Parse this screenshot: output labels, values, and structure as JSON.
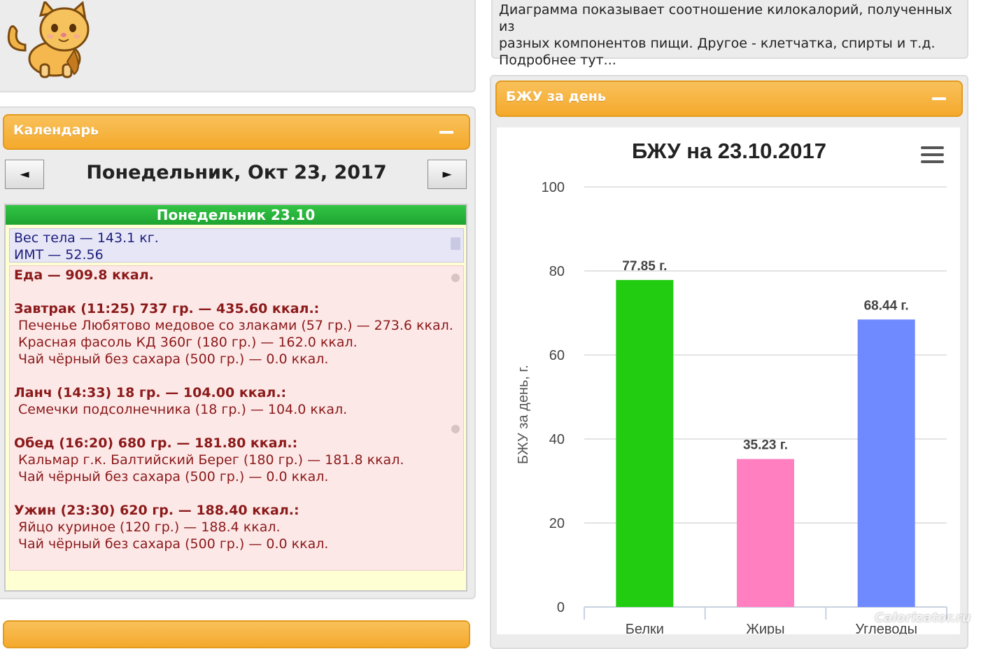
{
  "description": {
    "lines": [
      "Диаграмма показывает соотношение килокалорий, полученных из",
      "разных компонентов пищи. Другое - клетчатка, спирты и т.д.",
      "Подробнее тут..."
    ]
  },
  "calendar": {
    "header": "Календарь",
    "title": "Понедельник, Окт 23, 2017",
    "prev_symbol": "◄",
    "next_symbol": "►",
    "day_header": "Понедельник 23.10",
    "weight_line": "Вес тела — 143.1 кг.",
    "bmi_line": "ИМТ — 52.56",
    "food_total": "Еда — 909.8 ккал.",
    "meals": [
      {
        "title": "Завтрак (11:25) 737 гр. — 435.60 ккал.:",
        "items": [
          "Печенье Любятово медовое со злаками (57 гр.) — 273.6 ккал.",
          "Красная фасоль КД 360г (180 гр.) — 162.0 ккал.",
          "Чай чёрный без сахара (500 гр.) — 0.0 ккал."
        ]
      },
      {
        "title": "Ланч (14:33) 18 гр. — 104.00 ккал.:",
        "items": [
          "Семечки подсолнечника (18 гр.) — 104.0 ккал."
        ]
      },
      {
        "title": "Обед (16:20) 680 гр. — 181.80 ккал.:",
        "items": [
          "Кальмар г.к. Балтийский Берег (180 гр.) — 181.8 ккал.",
          "Чай чёрный без сахара (500 гр.) — 0.0 ккал."
        ]
      },
      {
        "title": "Ужин (23:30) 620 гр. — 188.40 ккал.:",
        "items": [
          "Яйцо куриное (120 гр.) — 188.4 ккал.",
          "Чай чёрный без сахара (500 гр.) — 0.0 ккал."
        ]
      }
    ]
  },
  "bju_panel": {
    "header": "БЖУ за день"
  },
  "watermark": "Calorizator.ru",
  "chart_data": {
    "type": "bar",
    "title": "БЖУ на 23.10.2017",
    "ylabel": "БЖУ за день, г.",
    "xlabel": "",
    "categories": [
      "Белки",
      "Жиры",
      "Углеводы"
    ],
    "values": [
      77.85,
      35.23,
      68.44
    ],
    "data_labels": [
      "77.85 г.",
      "35.23 г.",
      "68.44 г."
    ],
    "colors": [
      "#22cc11",
      "#ff7fc1",
      "#6f89ff"
    ],
    "ylim": [
      0,
      100
    ],
    "yticks": [
      "0",
      "20",
      "40",
      "60",
      "80",
      "100"
    ],
    "grid": true,
    "legend": false
  }
}
